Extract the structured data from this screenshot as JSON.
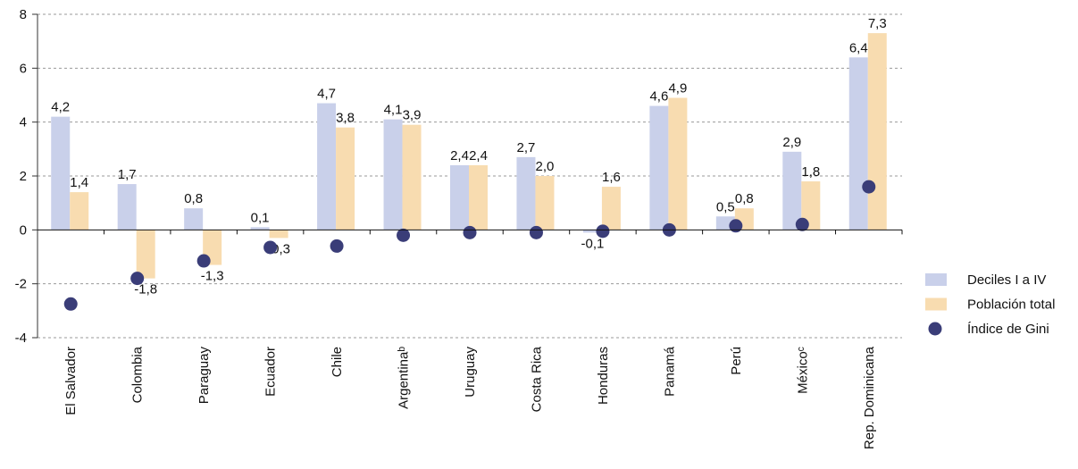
{
  "chart_data": {
    "type": "bar",
    "categories": [
      "El Salvador",
      "Colombia",
      "Paraguay",
      "Ecuador",
      "Chile",
      "Argentinaᵇ",
      "Uruguay",
      "Costa Rica",
      "Honduras",
      "Panamá",
      "Perú",
      "Méxicoᶜ",
      "Rep. Dominicana"
    ],
    "series": [
      {
        "name": "Deciles I a IV",
        "color": "#c9d0ea",
        "values": [
          4.2,
          1.7,
          0.8,
          0.1,
          4.7,
          4.1,
          2.4,
          2.7,
          -0.1,
          4.6,
          0.5,
          2.9,
          6.4
        ],
        "value_labels": [
          "4,2",
          "1,7",
          "0,8",
          "0,1",
          "4,7",
          "4,1",
          "2,4",
          "2,7",
          "-0,1",
          "4,6",
          "0,5",
          "2,9",
          "6,4"
        ]
      },
      {
        "name": "Población total",
        "color": "#f8dcb0",
        "values": [
          1.4,
          -1.8,
          -1.3,
          -0.3,
          3.8,
          3.9,
          2.4,
          2.0,
          1.6,
          4.9,
          0.8,
          1.8,
          7.3
        ],
        "value_labels": [
          "1,4",
          "-1,8",
          "-1,3",
          "-0,3",
          "3,8",
          "3,9",
          "2,4",
          "2,0",
          "1,6",
          "4,9",
          "0,8",
          "1,8",
          "7,3"
        ]
      },
      {
        "name": "Índice de Gini",
        "type": "scatter",
        "color": "#3a3d78",
        "values": [
          -2.75,
          -1.8,
          -1.15,
          -0.65,
          -0.6,
          -0.2,
          -0.1,
          -0.1,
          -0.05,
          0.0,
          0.15,
          0.2,
          1.6
        ]
      }
    ],
    "ylim": [
      -4,
      8
    ],
    "yticks": [
      -4,
      -2,
      0,
      2,
      4,
      6,
      8
    ],
    "grid": true,
    "legend": "right"
  }
}
